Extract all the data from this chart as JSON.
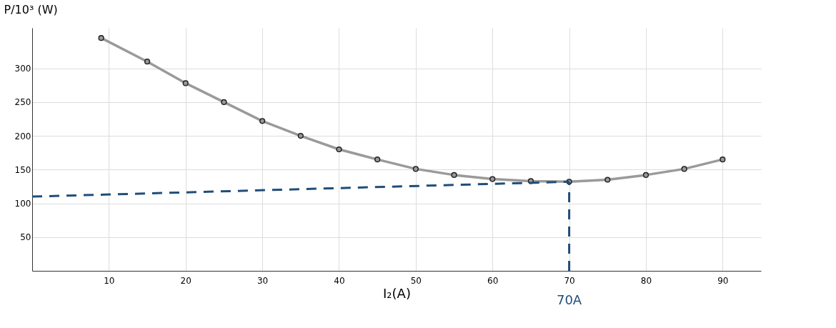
{
  "chart_data": {
    "type": "line",
    "xlabel": "I₂(A)",
    "ylabel": "P/10³ (W)",
    "xlim": [
      0,
      95
    ],
    "ylim": [
      0,
      360
    ],
    "xticks": [
      10,
      20,
      30,
      40,
      50,
      60,
      70,
      80,
      90
    ],
    "yticks": [
      50,
      100,
      150,
      200,
      250,
      300
    ],
    "grid": true,
    "series": [
      {
        "color": "#9a9a9a",
        "marker": "circle",
        "line_style": "solid",
        "x": [
          9,
          15,
          20,
          25,
          30,
          35,
          40,
          45,
          50,
          55,
          60,
          65,
          70,
          75,
          80,
          85,
          90
        ],
        "values": [
          345,
          310,
          278,
          250,
          222,
          200,
          180,
          165,
          151,
          142,
          136,
          133,
          132,
          135,
          142,
          151,
          165
        ]
      },
      {
        "color": "#1f4e79",
        "marker": "none",
        "line_style": "dashed",
        "x": [
          0,
          70
        ],
        "values": [
          110,
          132
        ]
      },
      {
        "color": "#1f4e79",
        "marker": "none",
        "line_style": "dashed",
        "x": [
          70,
          70
        ],
        "values": [
          0,
          132
        ]
      }
    ],
    "annotations": [
      {
        "text": "70A",
        "x": 70,
        "y": 0
      }
    ]
  }
}
